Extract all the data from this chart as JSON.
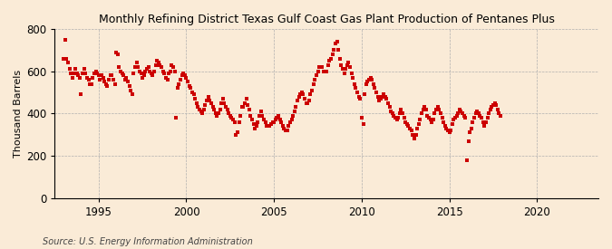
{
  "title": "Monthly Refining District Texas Gulf Coast Gas Plant Production of Pentanes Plus",
  "ylabel": "Thousand Barrels",
  "source": "Source: U.S. Energy Information Administration",
  "background_color": "#faebd7",
  "marker_color": "#cc0000",
  "xlim_start": 1992.5,
  "xlim_end": 2023.5,
  "ylim": [
    0,
    800
  ],
  "yticks": [
    0,
    200,
    400,
    600,
    800
  ],
  "xticks": [
    1995,
    2000,
    2005,
    2010,
    2015,
    2020
  ],
  "values": [
    660,
    750,
    660,
    640,
    610,
    590,
    570,
    590,
    610,
    590,
    580,
    570,
    490,
    590,
    610,
    590,
    570,
    560,
    540,
    540,
    570,
    590,
    600,
    590,
    580,
    560,
    580,
    570,
    550,
    540,
    530,
    560,
    580,
    580,
    560,
    540,
    690,
    680,
    620,
    600,
    590,
    580,
    560,
    570,
    550,
    530,
    510,
    490,
    590,
    620,
    640,
    620,
    600,
    590,
    570,
    580,
    600,
    610,
    620,
    600,
    590,
    580,
    600,
    630,
    650,
    640,
    630,
    620,
    600,
    590,
    570,
    560,
    590,
    600,
    630,
    620,
    600,
    380,
    520,
    540,
    560,
    580,
    590,
    580,
    570,
    550,
    530,
    520,
    500,
    490,
    470,
    450,
    430,
    420,
    410,
    400,
    420,
    440,
    460,
    480,
    460,
    450,
    430,
    420,
    400,
    390,
    400,
    420,
    450,
    470,
    450,
    430,
    420,
    400,
    390,
    380,
    370,
    360,
    300,
    310,
    360,
    390,
    430,
    430,
    450,
    470,
    440,
    420,
    390,
    370,
    350,
    330,
    340,
    360,
    390,
    410,
    390,
    370,
    360,
    340,
    340,
    340,
    350,
    360,
    360,
    370,
    380,
    390,
    370,
    360,
    340,
    330,
    320,
    320,
    340,
    360,
    370,
    390,
    410,
    430,
    460,
    480,
    490,
    500,
    490,
    470,
    450,
    450,
    460,
    490,
    510,
    540,
    560,
    580,
    600,
    620,
    620,
    620,
    600,
    600,
    600,
    630,
    650,
    660,
    680,
    700,
    730,
    740,
    700,
    660,
    630,
    610,
    590,
    610,
    630,
    640,
    620,
    590,
    570,
    540,
    520,
    500,
    480,
    470,
    380,
    350,
    490,
    540,
    550,
    560,
    570,
    560,
    540,
    520,
    500,
    480,
    460,
    470,
    480,
    490,
    480,
    470,
    450,
    430,
    410,
    400,
    390,
    380,
    370,
    380,
    400,
    420,
    400,
    380,
    360,
    350,
    340,
    330,
    320,
    300,
    280,
    300,
    330,
    350,
    370,
    400,
    420,
    430,
    420,
    390,
    380,
    370,
    360,
    370,
    400,
    420,
    430,
    420,
    400,
    380,
    360,
    340,
    330,
    320,
    310,
    320,
    350,
    370,
    380,
    390,
    400,
    420,
    410,
    400,
    390,
    380,
    180,
    270,
    310,
    330,
    360,
    380,
    400,
    410,
    400,
    390,
    380,
    360,
    340,
    360,
    380,
    400,
    420,
    430,
    440,
    450,
    440,
    420,
    400,
    390
  ],
  "start_year": 1993,
  "start_month": 1
}
